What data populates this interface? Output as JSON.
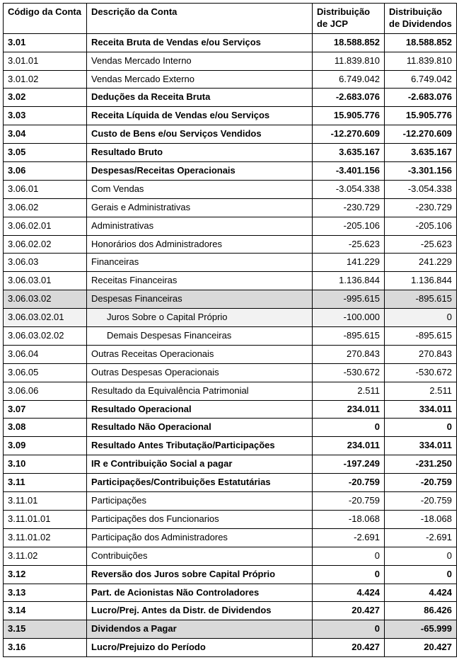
{
  "headers": {
    "codigo": "Código da Conta",
    "desc": "Descrição da Conta",
    "jcp": "Distribuição de JCP",
    "div": "Distribuição de Dividendos"
  },
  "rows": [
    {
      "codigo": "3.01",
      "desc": "Receita Bruta de Vendas e/ou Serviços",
      "jcp": "18.588.852",
      "div": "18.588.852",
      "bold": true
    },
    {
      "codigo": "3.01.01",
      "desc": "Vendas Mercado Interno",
      "jcp": "11.839.810",
      "div": "11.839.810"
    },
    {
      "codigo": "3.01.02",
      "desc": "Vendas Mercado Externo",
      "jcp": "6.749.042",
      "div": "6.749.042"
    },
    {
      "codigo": "3.02",
      "desc": "Deduções da Receita Bruta",
      "jcp": "-2.683.076",
      "div": "-2.683.076",
      "bold": true
    },
    {
      "codigo": "3.03",
      "desc": "Receita Líquida de Vendas e/ou Serviços",
      "jcp": "15.905.776",
      "div": "15.905.776",
      "bold": true
    },
    {
      "codigo": "3.04",
      "desc": "Custo de Bens e/ou Serviços Vendidos",
      "jcp": "-12.270.609",
      "div": "-12.270.609",
      "bold": true
    },
    {
      "codigo": "3.05",
      "desc": "Resultado Bruto",
      "jcp": "3.635.167",
      "div": "3.635.167",
      "bold": true
    },
    {
      "codigo": "3.06",
      "desc": "Despesas/Receitas Operacionais",
      "jcp": "-3.401.156",
      "div": "-3.301.156",
      "bold": true
    },
    {
      "codigo": "3.06.01",
      "desc": "Com Vendas",
      "jcp": "-3.054.338",
      "div": "-3.054.338"
    },
    {
      "codigo": "3.06.02",
      "desc": "Gerais e Administrativas",
      "jcp": "-230.729",
      "div": "-230.729"
    },
    {
      "codigo": "3.06.02.01",
      "desc": "Administrativas",
      "jcp": "-205.106",
      "div": "-205.106"
    },
    {
      "codigo": "3.06.02.02",
      "desc": "Honorários dos Administradores",
      "jcp": "-25.623",
      "div": "-25.623"
    },
    {
      "codigo": "3.06.03",
      "desc": "Financeiras",
      "jcp": "141.229",
      "div": "241.229"
    },
    {
      "codigo": "3.06.03.01",
      "desc": "Receitas Financeiras",
      "jcp": "1.136.844",
      "div": "1.136.844"
    },
    {
      "codigo": "3.06.03.02",
      "desc": "Despesas Financeiras",
      "jcp": "-995.615",
      "div": "-895.615",
      "shade": "dark"
    },
    {
      "codigo": "3.06.03.02.01",
      "desc": "Juros Sobre o Capital Próprio",
      "jcp": "-100.000",
      "div": "0",
      "shade": "light",
      "indent": true
    },
    {
      "codigo": "3.06.03.02.02",
      "desc": "Demais Despesas Financeiras",
      "jcp": "-895.615",
      "div": "-895.615",
      "indent": true
    },
    {
      "codigo": "3.06.04",
      "desc": "Outras Receitas Operacionais",
      "jcp": "270.843",
      "div": "270.843"
    },
    {
      "codigo": "3.06.05",
      "desc": "Outras Despesas Operacionais",
      "jcp": "-530.672",
      "div": "-530.672"
    },
    {
      "codigo": "3.06.06",
      "desc": "Resultado da Equivalência Patrimonial",
      "jcp": "2.511",
      "div": "2.511"
    },
    {
      "codigo": "3.07",
      "desc": "Resultado Operacional",
      "jcp": "234.011",
      "div": "334.011",
      "bold": true
    },
    {
      "codigo": "3.08",
      "desc": "Resultado Não Operacional",
      "jcp": "0",
      "div": "0",
      "bold": true
    },
    {
      "codigo": "3.09",
      "desc": "Resultado Antes Tributação/Participações",
      "jcp": "234.011",
      "div": "334.011",
      "bold": true
    },
    {
      "codigo": "3.10",
      "desc": "IR e Contribuição Social a pagar",
      "jcp": "-197.249",
      "div": "-231.250",
      "bold": true
    },
    {
      "codigo": "3.11",
      "desc": "Participações/Contribuições Estatutárias",
      "jcp": "-20.759",
      "div": "-20.759",
      "bold": true
    },
    {
      "codigo": "3.11.01",
      "desc": "Participações",
      "jcp": "-20.759",
      "div": "-20.759"
    },
    {
      "codigo": "3.11.01.01",
      "desc": "Participações dos Funcionarios",
      "jcp": "-18.068",
      "div": "-18.068"
    },
    {
      "codigo": "3.11.01.02",
      "desc": "Participação dos Administradores",
      "jcp": "-2.691",
      "div": "-2.691"
    },
    {
      "codigo": "3.11.02",
      "desc": "Contribuições",
      "jcp": "0",
      "div": "0"
    },
    {
      "codigo": "3.12",
      "desc": "Reversão dos Juros sobre Capital Próprio",
      "jcp": "0",
      "div": "0",
      "bold": true
    },
    {
      "codigo": "3.13",
      "desc": "Part. de Acionistas Não Controladores",
      "jcp": "4.424",
      "div": "4.424",
      "bold": true
    },
    {
      "codigo": "3.14",
      "desc": "Lucro/Prej. Antes da Distr. de Dividendos",
      "jcp": "20.427",
      "div": "86.426",
      "bold": true
    },
    {
      "codigo": "3.15",
      "desc": "Dividendos a Pagar",
      "jcp": "0",
      "div": "-65.999",
      "bold": true,
      "shade": "dark"
    },
    {
      "codigo": "3.16",
      "desc": "Lucro/Prejuizo do Período",
      "jcp": "20.427",
      "div": "20.427",
      "bold": true
    }
  ]
}
